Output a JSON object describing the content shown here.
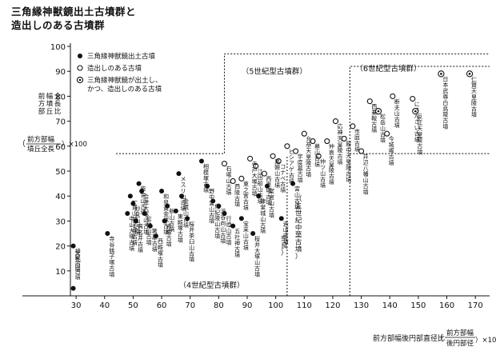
{
  "chart_data": {
    "type": "scatter",
    "title": [
      "三角縁神獣鏡出土古墳群と",
      "造出しのある古墳群"
    ],
    "xlabel": "前方部幅後円部直径比",
    "xlabel_ratio": {
      "numerator": "前方部幅",
      "denominator": "後円部径",
      "multiplier": "×100"
    },
    "ylabel": [
      "前方部",
      "幅墳丘",
      "全長比"
    ],
    "ylabel_ratio": {
      "numerator": "前方部幅",
      "denominator": "墳丘全長",
      "multiplier": "×100"
    },
    "xlim": [
      28,
      175
    ],
    "ylim": [
      0,
      100
    ],
    "x_ticks": [
      30,
      40,
      50,
      60,
      70,
      80,
      90,
      100,
      110,
      120,
      130,
      140,
      150,
      160,
      170
    ],
    "y_ticks": [
      10,
      20,
      30,
      40,
      50,
      60,
      70,
      80,
      90,
      100
    ],
    "grid": false,
    "legend_position": "top-left",
    "legend": [
      {
        "marker": "filled",
        "label": "三角縁神獣鏡出土古墳"
      },
      {
        "marker": "open",
        "label": "造出しのある古墳"
      },
      {
        "marker": "double",
        "label": [
          "三角縁神獣鏡が出土し、",
          "かつ、造出しのある古墳"
        ]
      }
    ],
    "annotations": {
      "century6": "（6世紀型古墳群）",
      "century5": "（5世紀型古墳群）",
      "century4": "（4世紀型古墳群）",
      "century5_mid": "（五世紀中葉古墳）",
      "nara": "（奈良）"
    },
    "series": [
      {
        "name": "三角縁神獣鏡出土古墳",
        "marker": "filled",
        "points": [
          {
            "x": 29,
            "y": 20,
            "label": "神蔵古墳"
          },
          {
            "x": 29,
            "y": 3,
            "label": "大丸山古墳"
          },
          {
            "x": 41,
            "y": 25,
            "label": "寺谷銚子塚古墳"
          },
          {
            "x": 48,
            "y": 33,
            "label": "中山大塚古墳"
          },
          {
            "x": 49,
            "y": 40,
            "label": "一貫山銚子塚古墳"
          },
          {
            "x": 50,
            "y": 37,
            "label": "妙見山古墳"
          },
          {
            "x": 51,
            "y": 30,
            "label": "真名井古墳"
          },
          {
            "x": 52,
            "y": 45,
            "label": "紫金山古墳"
          },
          {
            "x": 53,
            "y": 42,
            "label": "会津大塚山古墳"
          },
          {
            "x": 54,
            "y": 33,
            "label": "松林山古墳"
          },
          {
            "x": 56,
            "y": 28,
            "label": "箸墓古墳"
          },
          {
            "x": 58,
            "y": 24,
            "label": "西殿塚古墳"
          },
          {
            "x": 60,
            "y": 42,
            "label": "和泉黄金塚古墳"
          },
          {
            "x": 61,
            "y": 30,
            "label": "赤塚古墳"
          },
          {
            "x": 62,
            "y": 36,
            "label": "新山古墳"
          },
          {
            "x": 65,
            "y": 34,
            "label": "東殿塚古墳"
          },
          {
            "x": 66,
            "y": 49,
            "label": "メスリ山古墳"
          },
          {
            "x": 67,
            "y": 40,
            "label": "金蔵山古墳"
          },
          {
            "x": 69,
            "y": 31,
            "label": "桜井茶臼山古墳"
          },
          {
            "x": 74,
            "y": 54,
            "label": "相模塚古墳"
          },
          {
            "x": 76,
            "y": 44,
            "label": "野中宮山古墳"
          },
          {
            "x": 78,
            "y": 38,
            "label": "佐紀陵山古墳"
          },
          {
            "x": 80,
            "y": 36,
            "label": "渋谷向山古墳"
          },
          {
            "x": 82,
            "y": 33,
            "label": "行燈山古墳"
          },
          {
            "x": 85,
            "y": 28,
            "label": "五社神古墳"
          },
          {
            "x": 88,
            "y": 31,
            "label": "宝来山古墳"
          },
          {
            "x": 92,
            "y": 25,
            "label": "桜井大塚山古墳"
          },
          {
            "x": 94,
            "y": 40,
            "label": "津堂城山古墳"
          },
          {
            "x": 97,
            "y": 44,
            "label": "室宮山古墳"
          },
          {
            "x": 102,
            "y": 31,
            "label": "造山古墳"
          },
          {
            "x": 106,
            "y": 45,
            "label": "宮山古墳"
          }
        ]
      },
      {
        "name": "造出しのある古墳",
        "marker": "open",
        "points": [
          {
            "x": 82,
            "y": 53,
            "label": "石塚山古墳"
          },
          {
            "x": 85,
            "y": 46,
            "label": "西陵古墳"
          },
          {
            "x": 88,
            "y": 47,
            "label": "東之宮古墳"
          },
          {
            "x": 91,
            "y": 55,
            "label": "寺戸大塚古墳"
          },
          {
            "x": 93,
            "y": 52,
            "label": "江田船山古墳"
          },
          {
            "x": 96,
            "y": 49,
            "label": "西車塚古墳"
          },
          {
            "x": 99,
            "y": 56,
            "label": "黒姫山古墳"
          },
          {
            "x": 101,
            "y": 54,
            "label": "コナベ古墳"
          },
          {
            "x": 104,
            "y": 60,
            "label": "ヒシアゲ古墳"
          },
          {
            "x": 107,
            "y": 58,
            "label": "宇度墓古墳"
          },
          {
            "x": 110,
            "y": 65,
            "label": "允恭天皇陵古墳"
          },
          {
            "x": 113,
            "y": 62,
            "label": "墓山古墳"
          },
          {
            "x": 115,
            "y": 56,
            "label": "仲ツ山古墳"
          },
          {
            "x": 118,
            "y": 62,
            "label": "仲哀天皇陵古墳"
          },
          {
            "x": 121,
            "y": 70,
            "label": "応神天皇陵古墳"
          },
          {
            "x": 124,
            "y": 63,
            "label": "履中天皇陵古墳"
          },
          {
            "x": 127,
            "y": 68,
            "label": "市庭古墳"
          },
          {
            "x": 130,
            "y": 58,
            "label": "井辺八幡山古墳"
          },
          {
            "x": 133,
            "y": 78,
            "label": "西乗鞍古墳"
          },
          {
            "x": 139,
            "y": 65,
            "label": "今城塚古墳"
          },
          {
            "x": 141,
            "y": 80,
            "label": "断夫山古墳"
          },
          {
            "x": 148,
            "y": 79,
            "label": "にさんざい古墳"
          }
        ]
      },
      {
        "name": "三角縁神獣鏡が出土し、かつ、造出しのある古墳",
        "marker": "double",
        "points": [
          {
            "x": 136,
            "y": 74,
            "label": "松岳山古墳"
          },
          {
            "x": 149,
            "y": 74,
            "label": "反正天皇陵古墳"
          },
          {
            "x": 158,
            "y": 89,
            "label": "日本武尊白鳥陵古墳"
          },
          {
            "x": 168,
            "y": 89,
            "label": "仁賢天皇陵古墳"
          }
        ]
      }
    ]
  }
}
